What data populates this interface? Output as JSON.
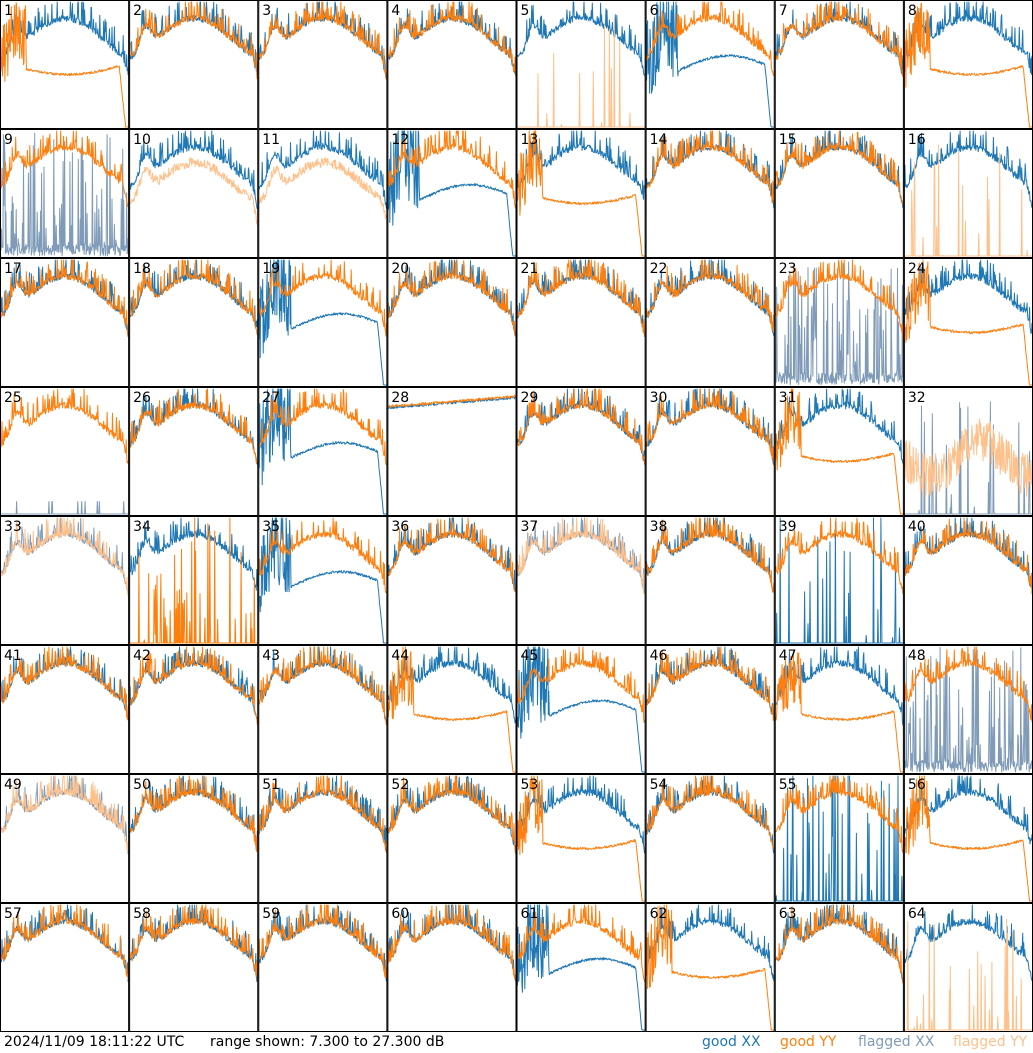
{
  "chart_data": {
    "type": "line",
    "layout": "small-multiples 8x8",
    "panels": [
      "1",
      "2",
      "3",
      "4",
      "5",
      "6",
      "7",
      "8",
      "9",
      "10",
      "11",
      "12",
      "13",
      "14",
      "15",
      "16",
      "17",
      "18",
      "19",
      "20",
      "21",
      "22",
      "23",
      "24",
      "25",
      "26",
      "27",
      "28",
      "29",
      "30",
      "31",
      "32",
      "33",
      "34",
      "35",
      "36",
      "37",
      "38",
      "39",
      "40",
      "41",
      "42",
      "43",
      "44",
      "45",
      "46",
      "47",
      "48",
      "49",
      "50",
      "51",
      "52",
      "53",
      "54",
      "55",
      "56",
      "57",
      "58",
      "59",
      "60",
      "61",
      "62",
      "63",
      "64"
    ],
    "ylim": [
      7.3,
      27.3
    ],
    "yunit": "dB",
    "grid": false,
    "legend_position": "bottom-right",
    "series": [
      {
        "name": "good XX",
        "color": "#1f77b4"
      },
      {
        "name": "good YY",
        "color": "#ff7f0e"
      },
      {
        "name": "flagged XX",
        "color": "#7f9bb8"
      },
      {
        "name": "flagged YY",
        "color": "#ffc08a"
      }
    ],
    "panel_styles": {
      "1": "deviant-yy",
      "5": "dead-yy",
      "6": "deviant-xx",
      "8": "deviant-yy",
      "9": "flagged-xx",
      "10": "flagged-yy",
      "11": "flagged-yy",
      "12": "deviant-xx",
      "13": "deviant-yy",
      "16": "dead-yy",
      "19": "deviant-xx",
      "23": "flagged-xx",
      "24": "deviant-yy",
      "25": "dead-xx-flag",
      "27": "deviant-xx",
      "28": "flat",
      "31": "deviant-yy",
      "32": "flagged-both-dead",
      "33": "flagged-both",
      "34": "dead-yy-spiky",
      "35": "deviant-xx",
      "37": "flagged-both",
      "39": "dead-xx-spiky",
      "44": "deviant-yy",
      "45": "deviant-xx",
      "47": "deviant-yy",
      "48": "flagged-xx",
      "49": "flagged-both",
      "53": "deviant-yy",
      "55": "dead-xx-spiky",
      "56": "deviant-yy",
      "61": "deviant-xx",
      "62": "deviant-yy",
      "64": "dead-yy"
    }
  },
  "footer": {
    "timestamp": "2024/11/09 18:11:22 UTC",
    "range_text": "range shown: 7.300 to 27.300 dB",
    "legend": [
      "good XX",
      "good YY",
      "flagged XX",
      "flagged YY"
    ]
  }
}
